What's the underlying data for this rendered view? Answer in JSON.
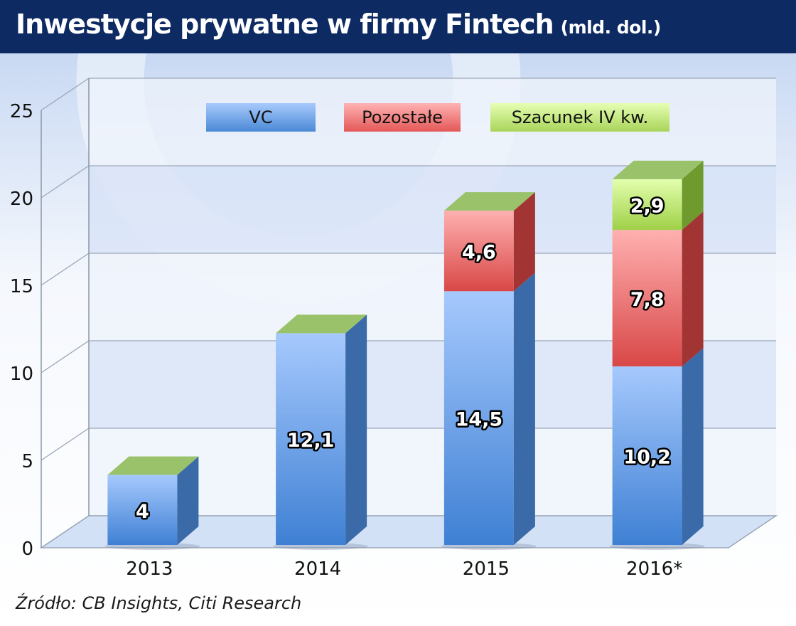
{
  "header": {
    "title": "Inwestycje prywatne w firmy Fintech",
    "unit": "(mld. dol.)"
  },
  "source": "Źródło: CB Insights, Citi Research",
  "colors": {
    "vc": "#4a89d6",
    "other": "#e15b5b",
    "estimate": "#a3d35a",
    "header_bg": "#0d2a63"
  },
  "chart_data": {
    "type": "bar",
    "stacked": true,
    "title": "Inwestycje prywatne w firmy Fintech (mld. dol.)",
    "categories": [
      "2013",
      "2014",
      "2015",
      "2016*"
    ],
    "series": [
      {
        "name": "VC",
        "values": [
          4,
          12.1,
          14.5,
          10.2
        ],
        "labels": [
          "4",
          "12,1",
          "14,5",
          "10,2"
        ]
      },
      {
        "name": "Pozostałe",
        "values": [
          0,
          0,
          4.6,
          7.8
        ],
        "labels": [
          "",
          "",
          "4,6",
          "7,8"
        ]
      },
      {
        "name": "Szacunek IV kw.",
        "values": [
          0,
          0,
          0,
          2.9
        ],
        "labels": [
          "",
          "",
          "",
          "2,9"
        ]
      }
    ],
    "ylim": [
      0,
      25
    ],
    "yticks": [
      0,
      5,
      10,
      15,
      20,
      25
    ],
    "grid": true,
    "legend": "top-center"
  }
}
